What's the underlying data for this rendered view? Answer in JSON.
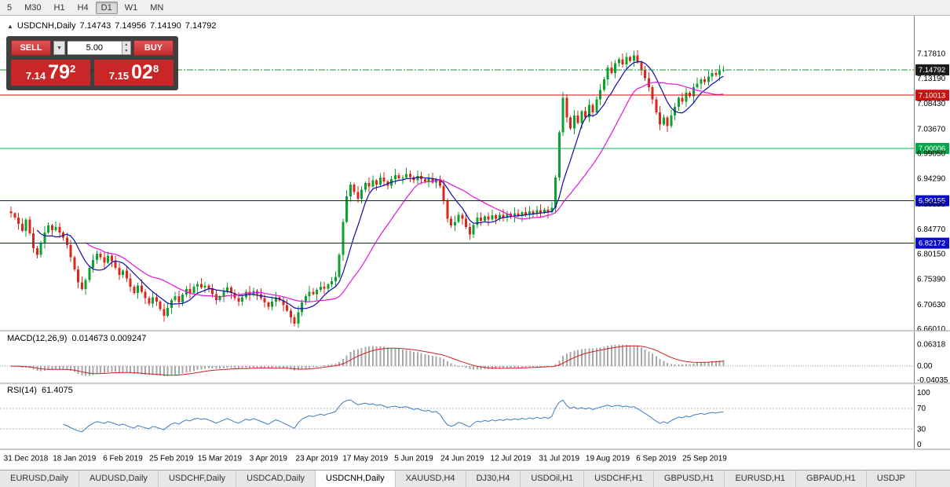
{
  "colors": {
    "candle_up": "#0ca22e",
    "candle_down": "#d8271c",
    "ma_fast": "#0b0bb0",
    "ma_slow": "#e516d8",
    "macd_hist": "#a8a8a8",
    "macd_signal": "#cc2222",
    "rsi_line": "#3f7cc0",
    "axis_text": "#000000"
  },
  "toolbar": {
    "timeframes": [
      "5",
      "M30",
      "H1",
      "H4",
      "D1",
      "W1",
      "MN"
    ],
    "active_timeframe": "D1"
  },
  "chart_header": {
    "symbol": "USDCNH,Daily",
    "open": "7.14743",
    "high": "7.14956",
    "low": "7.14190",
    "close": "7.14792"
  },
  "trade_panel": {
    "sell_label": "SELL",
    "buy_label": "BUY",
    "volume": "5.00",
    "sell_price": {
      "big": "7.14",
      "pips": "79",
      "pipette": "2"
    },
    "buy_price": {
      "big": "7.15",
      "pips": "02",
      "pipette": "8"
    }
  },
  "indicators": {
    "macd": {
      "name": "MACD(12,26,9)",
      "values": "0.014673 0.009247",
      "axis_labels": [
        "0.06318",
        "0.00",
        "-0.04035"
      ]
    },
    "rsi": {
      "name": "RSI(14)",
      "value": "61.4075",
      "axis_labels": [
        "100",
        "70",
        "30",
        "0"
      ]
    }
  },
  "chart_data": {
    "type": "candlestick",
    "title": "USDCNH,Daily",
    "x_labels": [
      "31 Dec 2018",
      "18 Jan 2019",
      "6 Feb 2019",
      "25 Feb 2019",
      "15 Mar 2019",
      "3 Apr 2019",
      "23 Apr 2019",
      "17 May 2019",
      "5 Jun 2019",
      "24 Jun 2019",
      "12 Jul 2019",
      "31 Jul 2019",
      "19 Aug 2019",
      "6 Sep 2019",
      "25 Sep 2019"
    ],
    "x_label_bar_indices": [
      4,
      17,
      30,
      43,
      56,
      69,
      82,
      95,
      108,
      121,
      134,
      147,
      160,
      173,
      186
    ],
    "y_axis_ticks": [
      "7.17810",
      "7.13190",
      "7.08430",
      "7.03670",
      "6.99050",
      "6.94290",
      "6.89530",
      "6.84770",
      "6.80150",
      "6.75390",
      "6.70630",
      "6.66010"
    ],
    "price_lines": [
      {
        "price": 7.14792,
        "label": "7.14792",
        "color": "#1f8c3c",
        "badge": "#1b1b1b",
        "style": "dashdot",
        "name": "current-price-line"
      },
      {
        "price": 7.10013,
        "label": "7.10013",
        "color": "#cc1111",
        "badge": "#cc1111",
        "style": "solid",
        "name": "hline-7-10013"
      },
      {
        "price": 7.00006,
        "label": "7.00006",
        "color": "#00b44c",
        "badge": "#00a847",
        "style": "solid",
        "name": "hline-7-00006"
      },
      {
        "price": 6.90155,
        "label": "6.90155",
        "color": "#0a0ae0",
        "badge": "#0909cc",
        "style": "solid",
        "name": "hline-6-90155"
      },
      {
        "price": 6.82172,
        "label": "6.82172",
        "color": "#0a0ae0",
        "badge": "#0909cc",
        "style": "solid",
        "name": "hline-6-82172"
      }
    ],
    "closes": [
      6.878,
      6.87,
      6.858,
      6.845,
      6.866,
      6.84,
      6.812,
      6.8,
      6.822,
      6.842,
      6.855,
      6.846,
      6.852,
      6.842,
      6.832,
      6.818,
      6.795,
      6.772,
      6.748,
      6.735,
      6.752,
      6.775,
      6.79,
      6.802,
      6.795,
      6.785,
      6.798,
      6.788,
      6.775,
      6.762,
      6.77,
      6.755,
      6.74,
      6.728,
      6.742,
      6.73,
      6.718,
      6.708,
      6.72,
      6.712,
      6.698,
      6.685,
      6.7,
      6.715,
      6.722,
      6.71,
      6.725,
      6.735,
      6.728,
      6.74,
      6.745,
      6.738,
      6.742,
      6.735,
      6.726,
      6.715,
      6.722,
      6.73,
      6.738,
      6.728,
      6.718,
      6.712,
      6.72,
      6.73,
      6.724,
      6.732,
      6.726,
      6.718,
      6.71,
      6.702,
      6.712,
      6.72,
      6.714,
      6.705,
      6.695,
      6.682,
      6.67,
      6.692,
      6.71,
      6.722,
      6.73,
      6.726,
      6.734,
      6.74,
      6.736,
      6.744,
      6.75,
      6.758,
      6.8,
      6.862,
      6.91,
      6.932,
      6.918,
      6.905,
      6.922,
      6.935,
      6.928,
      6.94,
      6.932,
      6.945,
      6.938,
      6.93,
      6.942,
      6.95,
      6.944,
      6.945,
      6.952,
      6.946,
      6.94,
      6.948,
      6.942,
      6.938,
      6.944,
      6.936,
      6.942,
      6.93,
      6.902,
      6.868,
      6.855,
      6.862,
      6.875,
      6.868,
      6.852,
      6.838,
      6.856,
      6.87,
      6.864,
      6.872,
      6.866,
      6.874,
      6.868,
      6.875,
      6.87,
      6.877,
      6.872,
      6.878,
      6.873,
      6.88,
      6.875,
      6.882,
      6.877,
      6.884,
      6.879,
      6.885,
      6.88,
      6.888,
      6.945,
      7.03,
      7.095,
      7.058,
      7.038,
      7.062,
      7.048,
      7.07,
      7.058,
      7.082,
      7.068,
      7.092,
      7.11,
      7.13,
      7.152,
      7.142,
      7.16,
      7.168,
      7.158,
      7.172,
      7.165,
      7.175,
      7.162,
      7.148,
      7.132,
      7.115,
      7.092,
      7.068,
      7.045,
      7.058,
      7.042,
      7.062,
      7.078,
      7.095,
      7.088,
      7.105,
      7.098,
      7.115,
      7.122,
      7.13,
      7.125,
      7.135,
      7.142,
      7.138,
      7.146,
      7.148
    ]
  },
  "bottom_tabs": {
    "active": "USDCNH,Daily",
    "items": [
      "EURUSD,Daily",
      "AUDUSD,Daily",
      "USDCHF,Daily",
      "USDCAD,Daily",
      "USDCNH,Daily",
      "XAUUSD,H4",
      "DJ30,H4",
      "USDOil,H1",
      "USDCHF,H1",
      "GBPUSD,H1",
      "EURUSD,H1",
      "GBPAUD,H1",
      "USDJP"
    ]
  }
}
